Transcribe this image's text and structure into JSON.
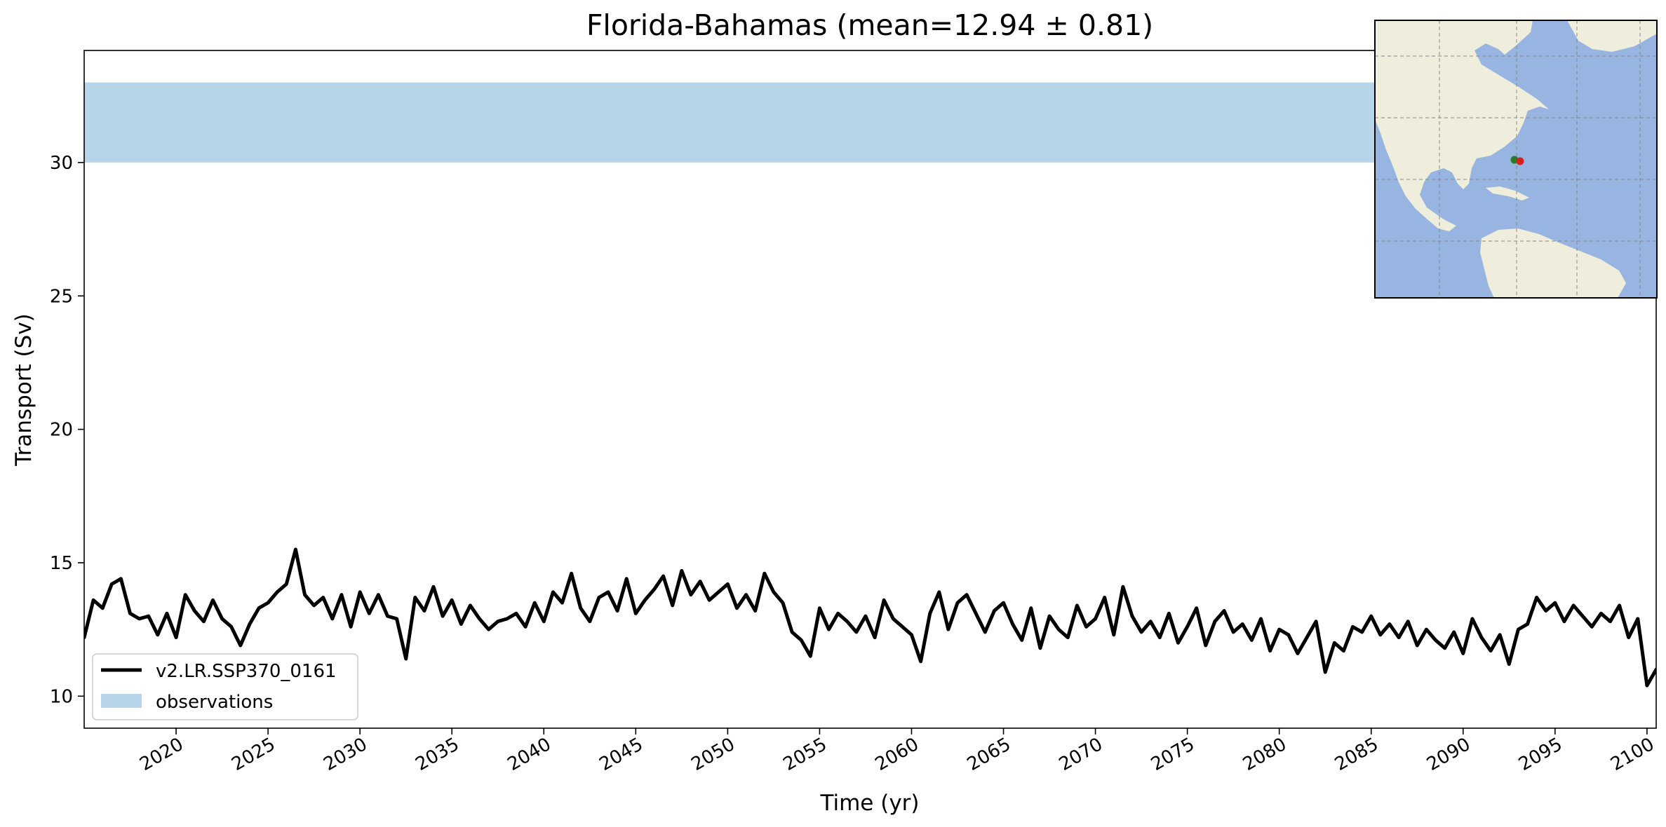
{
  "chart_data": {
    "type": "line",
    "title": "Florida-Bahamas (mean=12.94 ± 0.81)",
    "xlabel": "Time (yr)",
    "ylabel": "Transport (Sv)",
    "xlim": [
      2015,
      2100.5
    ],
    "ylim": [
      8.8,
      34.2
    ],
    "x_ticks": [
      2020,
      2025,
      2030,
      2035,
      2040,
      2045,
      2050,
      2055,
      2060,
      2065,
      2070,
      2075,
      2080,
      2085,
      2090,
      2095,
      2100
    ],
    "y_ticks": [
      10,
      15,
      20,
      25,
      30
    ],
    "grid": false,
    "legend_position": "lower-left",
    "observations_band": {
      "name": "observations",
      "y_min": 30,
      "y_max": 33,
      "color": "#b8d4e8"
    },
    "series": [
      {
        "name": "v2.LR.SSP370_0161",
        "color": "#000000",
        "x": [
          2015.0,
          2015.5,
          2016.0,
          2016.5,
          2017.0,
          2017.5,
          2018.0,
          2018.5,
          2019.0,
          2019.5,
          2020.0,
          2020.5,
          2021.0,
          2021.5,
          2022.0,
          2022.5,
          2023.0,
          2023.5,
          2024.0,
          2024.5,
          2025.0,
          2025.5,
          2026.0,
          2026.5,
          2027.0,
          2027.5,
          2028.0,
          2028.5,
          2029.0,
          2029.5,
          2030.0,
          2030.5,
          2031.0,
          2031.5,
          2032.0,
          2032.5,
          2033.0,
          2033.5,
          2034.0,
          2034.5,
          2035.0,
          2035.5,
          2036.0,
          2036.5,
          2037.0,
          2037.5,
          2038.0,
          2038.5,
          2039.0,
          2039.5,
          2040.0,
          2040.5,
          2041.0,
          2041.5,
          2042.0,
          2042.5,
          2043.0,
          2043.5,
          2044.0,
          2044.5,
          2045.0,
          2045.5,
          2046.0,
          2046.5,
          2047.0,
          2047.5,
          2048.0,
          2048.5,
          2049.0,
          2049.5,
          2050.0,
          2050.5,
          2051.0,
          2051.5,
          2052.0,
          2052.5,
          2053.0,
          2053.5,
          2054.0,
          2054.5,
          2055.0,
          2055.5,
          2056.0,
          2056.5,
          2057.0,
          2057.5,
          2058.0,
          2058.5,
          2059.0,
          2059.5,
          2060.0,
          2060.5,
          2061.0,
          2061.5,
          2062.0,
          2062.5,
          2063.0,
          2063.5,
          2064.0,
          2064.5,
          2065.0,
          2065.5,
          2066.0,
          2066.5,
          2067.0,
          2067.5,
          2068.0,
          2068.5,
          2069.0,
          2069.5,
          2070.0,
          2070.5,
          2071.0,
          2071.5,
          2072.0,
          2072.5,
          2073.0,
          2073.5,
          2074.0,
          2074.5,
          2075.0,
          2075.5,
          2076.0,
          2076.5,
          2077.0,
          2077.5,
          2078.0,
          2078.5,
          2079.0,
          2079.5,
          2080.0,
          2080.5,
          2081.0,
          2081.5,
          2082.0,
          2082.5,
          2083.0,
          2083.5,
          2084.0,
          2084.5,
          2085.0,
          2085.5,
          2086.0,
          2086.5,
          2087.0,
          2087.5,
          2088.0,
          2088.5,
          2089.0,
          2089.5,
          2090.0,
          2090.5,
          2091.0,
          2091.5,
          2092.0,
          2092.5,
          2093.0,
          2093.5,
          2094.0,
          2094.5,
          2095.0,
          2095.5,
          2096.0,
          2096.5,
          2097.0,
          2097.5,
          2098.0,
          2098.5,
          2099.0,
          2099.5,
          2100.0,
          2100.5
        ],
        "y": [
          12.2,
          13.6,
          13.3,
          14.2,
          14.4,
          13.1,
          12.9,
          13.0,
          12.3,
          13.1,
          12.2,
          13.8,
          13.2,
          12.8,
          13.6,
          12.9,
          12.6,
          11.9,
          12.7,
          13.3,
          13.5,
          13.9,
          14.2,
          15.5,
          13.8,
          13.4,
          13.7,
          12.9,
          13.8,
          12.6,
          13.9,
          13.1,
          13.8,
          13.0,
          12.9,
          11.4,
          13.7,
          13.2,
          14.1,
          13.0,
          13.6,
          12.7,
          13.4,
          12.9,
          12.5,
          12.8,
          12.9,
          13.1,
          12.6,
          13.5,
          12.8,
          13.9,
          13.5,
          14.6,
          13.3,
          12.8,
          13.7,
          13.9,
          13.2,
          14.4,
          13.1,
          13.6,
          14.0,
          14.5,
          13.4,
          14.7,
          13.8,
          14.3,
          13.6,
          13.9,
          14.2,
          13.3,
          13.8,
          13.2,
          14.6,
          13.9,
          13.5,
          12.4,
          12.1,
          11.5,
          13.3,
          12.5,
          13.1,
          12.8,
          12.4,
          13.0,
          12.2,
          13.6,
          12.9,
          12.6,
          12.3,
          11.3,
          13.1,
          13.9,
          12.5,
          13.5,
          13.8,
          13.1,
          12.4,
          13.2,
          13.5,
          12.7,
          12.1,
          13.3,
          11.8,
          13.0,
          12.5,
          12.2,
          13.4,
          12.6,
          12.9,
          13.7,
          12.3,
          14.1,
          13.0,
          12.4,
          12.8,
          12.2,
          13.1,
          12.0,
          12.6,
          13.3,
          11.9,
          12.8,
          13.2,
          12.4,
          12.7,
          12.1,
          12.9,
          11.7,
          12.5,
          12.3,
          11.6,
          12.2,
          12.8,
          10.9,
          12.0,
          11.7,
          12.6,
          12.4,
          13.0,
          12.3,
          12.7,
          12.2,
          12.8,
          11.9,
          12.5,
          12.1,
          11.8,
          12.4,
          11.6,
          12.9,
          12.2,
          11.7,
          12.3,
          11.2,
          12.5,
          12.7,
          13.7,
          13.2,
          13.5,
          12.8,
          13.4,
          13.0,
          12.6,
          13.1,
          12.8,
          13.4,
          12.2,
          12.9,
          10.4,
          11.0
        ]
      }
    ],
    "inset_map": {
      "land_color": "#efeddc",
      "ocean_color": "#97b5e0",
      "grid": true,
      "markers": [
        {
          "name": "Florida",
          "color": "#2b7a2b"
        },
        {
          "name": "Bahamas",
          "color": "#d62020"
        }
      ]
    }
  }
}
